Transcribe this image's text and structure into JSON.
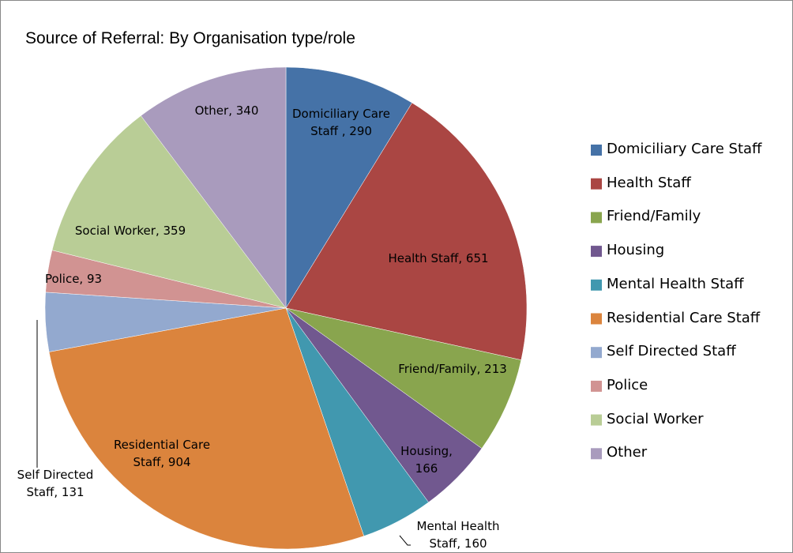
{
  "chart_data": {
    "type": "pie",
    "title": "Source of Referral: By Organisation type/role",
    "categories": [
      "Domiciliary Care Staff",
      "Health Staff",
      "Friend/Family",
      "Housing",
      "Mental Health Staff",
      "Residential Care Staff",
      "Self Directed Staff",
      "Police",
      "Social Worker",
      "Other"
    ],
    "values": [
      290,
      651,
      213,
      166,
      160,
      904,
      131,
      93,
      359,
      340
    ],
    "value_labels": [
      "Domiciliary Care Staff , 290",
      "Health Staff, 651",
      "Friend/Family, 213",
      "Housing, 166",
      "Mental Health Staff, 160",
      "Residential Care Staff, 904",
      "Self Directed Staff, 131",
      "Police, 93",
      "Social Worker, 359",
      "Other, 340"
    ],
    "colors": [
      "#4572a7",
      "#aa4643",
      "#89a54e",
      "#71588f",
      "#4198af",
      "#db843d",
      "#93a9cf",
      "#d19392",
      "#b9cd96",
      "#a99bbd"
    ],
    "legend": "right"
  }
}
